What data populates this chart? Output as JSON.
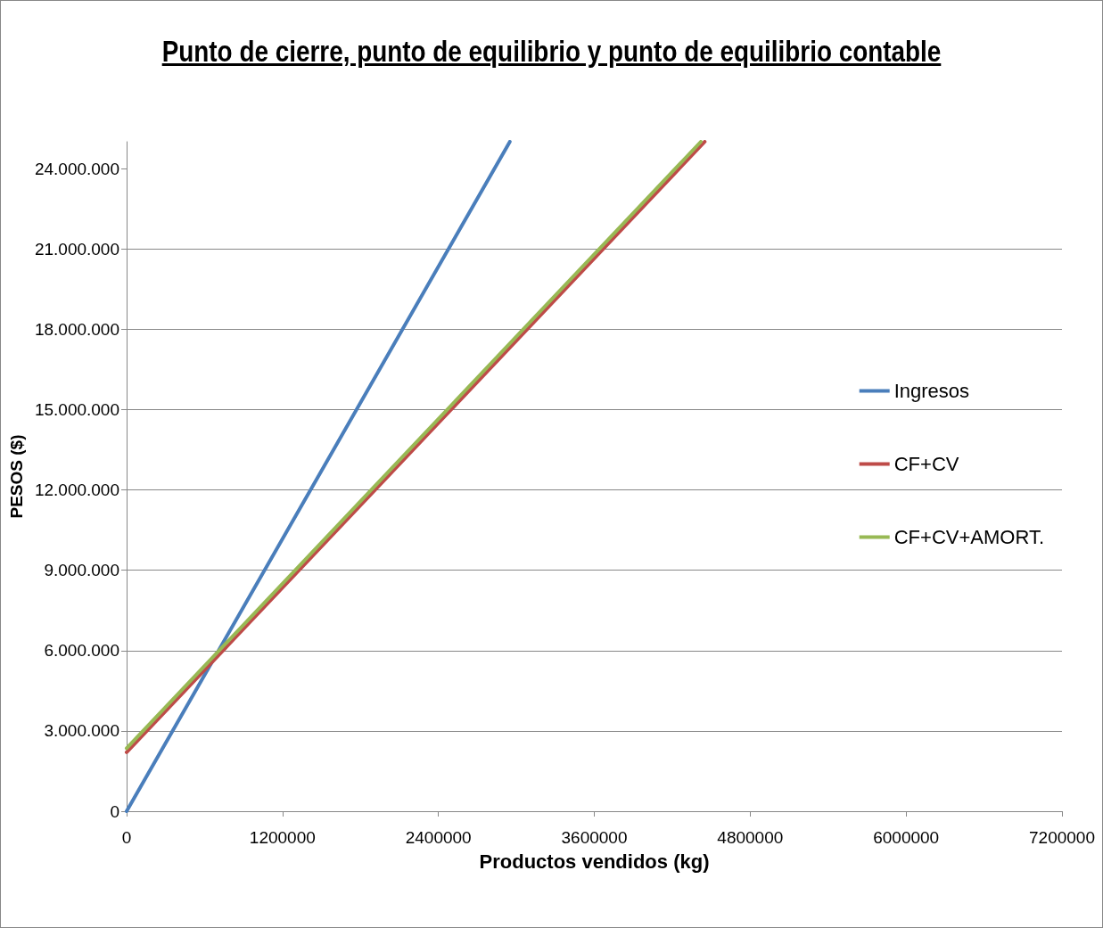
{
  "chart_data": {
    "type": "line",
    "title": "Punto de cierre, punto de equilibrio y punto de equilibrio contable",
    "xlabel": "Productos vendidos (kg)",
    "ylabel": "PESOS ($)",
    "series": [
      {
        "name": "Ingresos",
        "color": "#4a7ebb",
        "x": [
          0,
          2950000
        ],
        "values": [
          0,
          25000000
        ]
      },
      {
        "name": "CF+CV",
        "color": "#be4b48",
        "x": [
          0,
          4450000
        ],
        "values": [
          2200000,
          25000000
        ]
      },
      {
        "name": "CF+CV+AMORT.",
        "color": "#98b954",
        "x": [
          0,
          4420000
        ],
        "values": [
          2350000,
          25000000
        ]
      }
    ],
    "xlim": [
      0,
      7200000
    ],
    "xticks": [
      0,
      1200000,
      2400000,
      3600000,
      4800000,
      6000000,
      7200000
    ],
    "ylim": [
      0,
      25000000
    ],
    "yticks": [
      0,
      {
        "value": 3000000,
        "label": "3.000.000"
      },
      {
        "value": 6000000,
        "label": "6.000.000"
      },
      {
        "value": 9000000,
        "label": "9.000.000"
      },
      {
        "value": 12000000,
        "label": "12.000.000"
      },
      {
        "value": 15000000,
        "label": "15.000.000"
      },
      {
        "value": 18000000,
        "label": "18.000.000"
      },
      {
        "value": 21000000,
        "label": "21.000.000"
      },
      {
        "value": 24000000,
        "label": "24.000.000"
      }
    ],
    "grid": "y",
    "legend": "right",
    "marker": "none",
    "line_style": "solid"
  }
}
